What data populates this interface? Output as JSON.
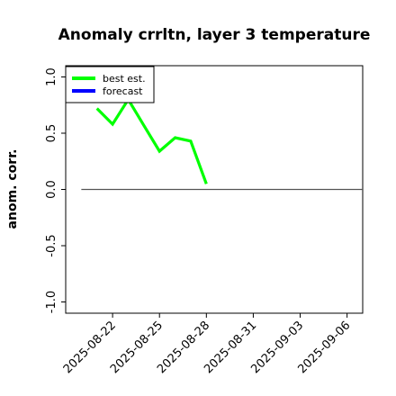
{
  "chart_data": {
    "type": "line",
    "title": "Anomaly crrltn, layer 3 temperature",
    "xlabel": "",
    "ylabel": "anom. corr.",
    "ylim": [
      -1.1,
      1.1
    ],
    "yticks": [
      "-1.0",
      "-0.5",
      "0.0",
      "0.5",
      "1.0"
    ],
    "ytick_values": [
      -1.0,
      -0.5,
      0.0,
      0.5,
      1.0
    ],
    "xlim": [
      "2025-08-19",
      "2025-09-07"
    ],
    "xticks": [
      "2025-08-22",
      "2025-08-25",
      "2025-08-28",
      "2025-08-31",
      "2025-09-03",
      "2025-09-06"
    ],
    "highlighted_xtick": "2025-08-28",
    "highlight_color": "#228b22",
    "reference_line": {
      "y": 0.0,
      "x_start": "2025-08-20",
      "x_end": "2025-09-07",
      "color": "#555555"
    },
    "grid": false,
    "legend_position": "top-left",
    "series": [
      {
        "name": "best est.",
        "color": "#00ff00",
        "x": [
          "2025-08-21",
          "2025-08-22",
          "2025-08-23",
          "2025-08-24",
          "2025-08-25",
          "2025-08-26",
          "2025-08-27",
          "2025-08-28"
        ],
        "y": [
          0.72,
          0.58,
          0.8,
          0.57,
          0.34,
          0.46,
          0.43,
          0.05
        ]
      },
      {
        "name": "forecast",
        "color": "#0000ff",
        "x": [],
        "y": []
      }
    ]
  }
}
